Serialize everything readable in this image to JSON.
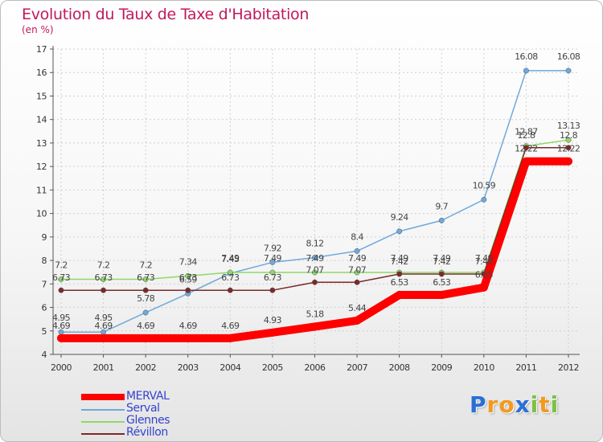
{
  "header": {
    "title": "Evolution du Taux de Taxe d'Habitation",
    "subtitle": "(en %)"
  },
  "chart_data": {
    "type": "line",
    "title": "Evolution du Taux de Taxe d'Habitation",
    "subtitle": "(en %)",
    "xlabel": "",
    "ylabel": "",
    "categories": [
      "2000",
      "2001",
      "2002",
      "2003",
      "2004",
      "2005",
      "2006",
      "2007",
      "2008",
      "2009",
      "2010",
      "2011",
      "2012"
    ],
    "ylim": [
      4,
      17
    ],
    "yticks": [
      4,
      5,
      6,
      7,
      8,
      9,
      10,
      11,
      12,
      13,
      14,
      15,
      16,
      17
    ],
    "grid": true,
    "legend_position": "bottom-left",
    "series": [
      {
        "name": "MERVAL",
        "color": "#ff0000",
        "values": [
          4.69,
          4.69,
          4.69,
          4.69,
          4.69,
          4.93,
          5.18,
          5.44,
          6.53,
          6.53,
          6.85,
          12.22,
          12.22
        ],
        "labels": [
          "4.69",
          "4.69",
          "4.69",
          "4.69",
          "4.69",
          "4.93",
          "5.18",
          "5.44",
          "6.53",
          "6.53",
          "6.85",
          "12.22",
          "12.22"
        ]
      },
      {
        "name": "Serval",
        "color": "#6fa8dc",
        "values": [
          4.95,
          4.95,
          5.78,
          6.59,
          7.45,
          7.92,
          8.12,
          8.4,
          9.24,
          9.7,
          10.59,
          16.08,
          16.08
        ],
        "labels": [
          "4.95",
          "4.95",
          "5.78",
          "6.59",
          "7.45",
          "7.92",
          "8.12",
          "8.4",
          "9.24",
          "9.7",
          "10.59",
          "16.08",
          "16.08"
        ]
      },
      {
        "name": "Glennes",
        "color": "#8fd86a",
        "values": [
          7.2,
          7.2,
          7.2,
          7.34,
          7.49,
          7.49,
          7.49,
          7.49,
          7.49,
          7.49,
          7.49,
          12.87,
          13.13
        ],
        "labels": [
          "7.2",
          "7.2",
          "7.2",
          "7.34",
          "7.49",
          "7.49",
          "7.49",
          "7.49",
          "7.49",
          "7.49",
          "7.49",
          "12.87",
          "13.13"
        ]
      },
      {
        "name": "Révillon",
        "color": "#7a2a2a",
        "values": [
          6.73,
          6.73,
          6.73,
          6.73,
          6.73,
          6.73,
          7.07,
          7.07,
          7.42,
          7.42,
          7.42,
          12.8,
          12.8
        ],
        "labels": [
          "6.73",
          "6.73",
          "6.73",
          "6.73",
          "6.73",
          "6.73",
          "7.07",
          "7.07",
          "7.42",
          "7.42",
          "7.42",
          "12.8",
          "12.8"
        ]
      }
    ]
  },
  "legend": {
    "items": [
      {
        "label": "MERVAL",
        "color": "#ff0000"
      },
      {
        "label": "Serval",
        "color": "#6fa8dc"
      },
      {
        "label": "Glennes",
        "color": "#8fd86a"
      },
      {
        "label": "Révillon",
        "color": "#7a2a2a"
      }
    ]
  },
  "logo": {
    "letters": [
      "P",
      "r",
      "o",
      "x",
      "i",
      "t",
      "i"
    ],
    "colors": [
      "#2a6fd6",
      "#f29a1f",
      "#f29a1f",
      "#2a6fd6",
      "#7cc242",
      "#f29a1f",
      "#7cc242"
    ]
  }
}
